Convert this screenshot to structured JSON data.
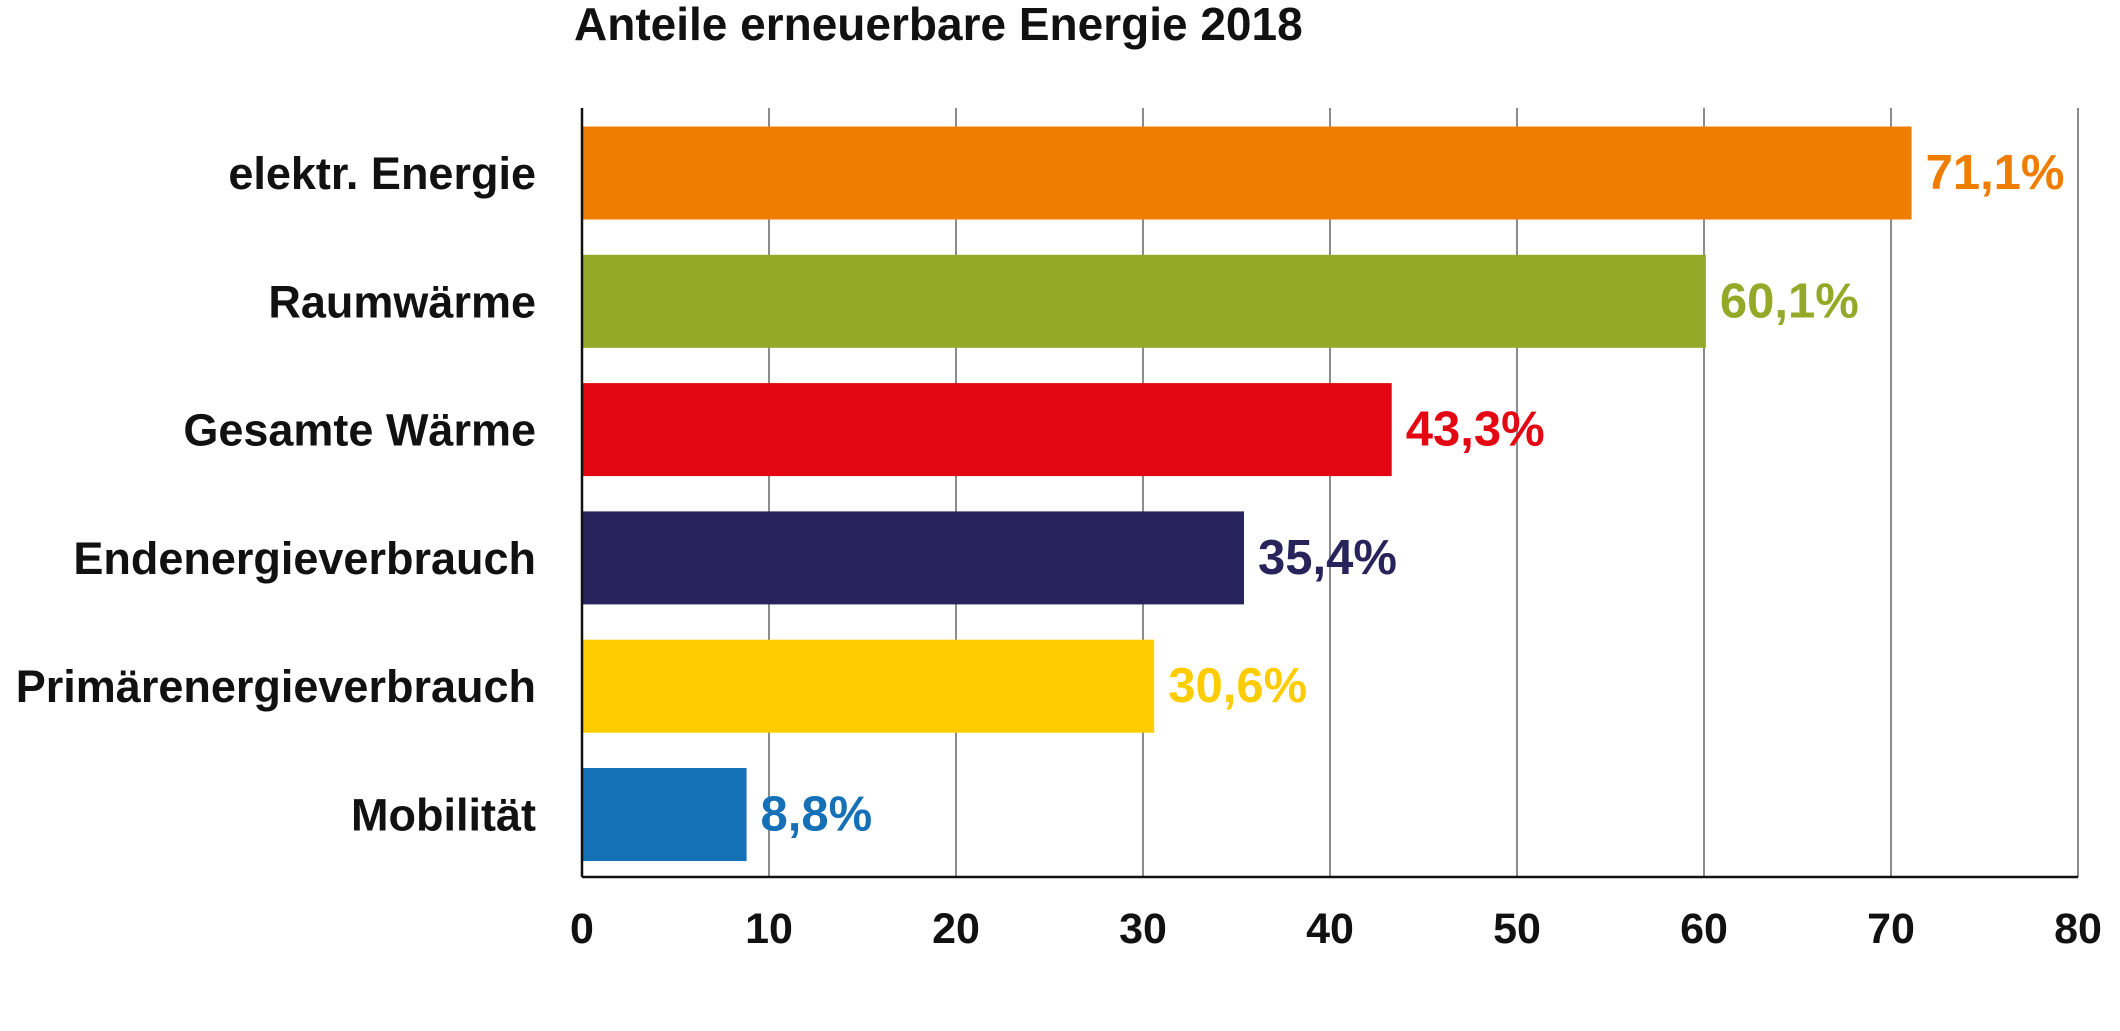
{
  "chart_data": {
    "type": "bar",
    "orientation": "horizontal",
    "title": "Anteile erneuerbare Energie 2018",
    "categories": [
      "elektr. Energie",
      "Raumwärme",
      "Gesamte Wärme",
      "Endenergieverbrauch",
      "Primärenergieverbrauch",
      "Mobilität"
    ],
    "values": [
      71.1,
      60.1,
      43.3,
      35.4,
      30.6,
      8.8
    ],
    "value_labels": [
      "71,1%",
      "60,1%",
      "43,3%",
      "35,4%",
      "30,6%",
      "8,8%"
    ],
    "colors": [
      "#ee7d00",
      "#95a928",
      "#e30613",
      "#29235c",
      "#ffcc00",
      "#1470b7"
    ],
    "xlim": [
      0,
      80
    ],
    "xticks": [
      0,
      10,
      20,
      30,
      40,
      50,
      60,
      70,
      80
    ],
    "xtick_labels": [
      "0",
      "10",
      "20",
      "30",
      "40",
      "50",
      "60",
      "70",
      "80"
    ],
    "xlabel": "",
    "ylabel": "",
    "grid": "vertical",
    "legend": "none"
  }
}
